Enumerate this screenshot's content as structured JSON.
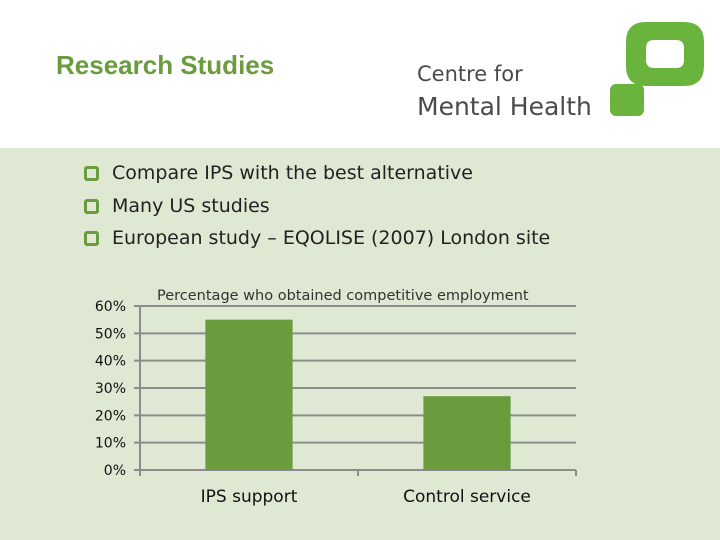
{
  "slide": {
    "title": "Research Studies",
    "bullets": [
      "Compare IPS with the best alternative",
      "Many US studies",
      "European study – EQOLISE (2007) London site"
    ]
  },
  "logo": {
    "line1": "Centre for",
    "line2": "Mental Health",
    "color": "#6ab43e"
  },
  "colors": {
    "accent": "#6a9c3d",
    "bar": "#6a9c3d",
    "background": "#dfe8d3"
  },
  "chart_data": {
    "type": "bar",
    "title": "Percentage who obtained competitive employment",
    "categories": [
      "IPS support",
      "Control service"
    ],
    "values": [
      55,
      27
    ],
    "ylim": [
      0,
      60
    ],
    "yticks": [
      "0%",
      "10%",
      "20%",
      "30%",
      "40%",
      "50%",
      "60%"
    ],
    "xlabel": "",
    "ylabel": "",
    "grid": true,
    "legend": "none"
  }
}
